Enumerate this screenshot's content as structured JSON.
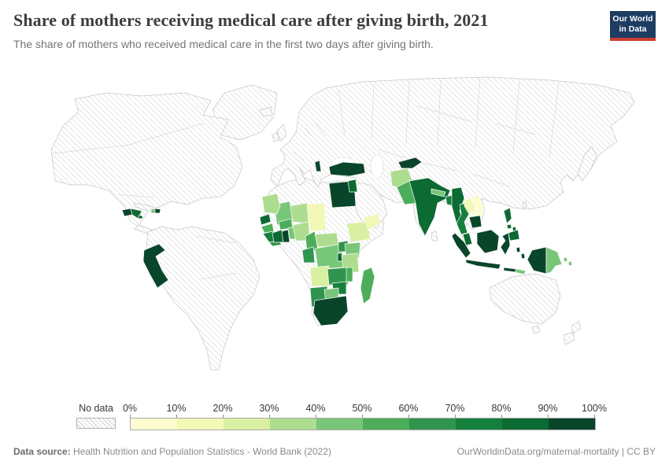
{
  "header": {
    "title": "Share of mothers receiving medical care after giving birth, 2021",
    "subtitle": "The share of mothers who received medical care in the first two days after giving birth.",
    "logo": {
      "line1": "Our World",
      "line2": "in Data",
      "bg_color": "#1d3d63",
      "accent_color": "#cc3e33"
    }
  },
  "legend": {
    "no_data_label": "No data",
    "tick_labels": [
      "0%",
      "10%",
      "20%",
      "30%",
      "40%",
      "50%",
      "60%",
      "70%",
      "80%",
      "90%",
      "100%"
    ],
    "bin_colors": [
      "#fdfbd0",
      "#f2f8b5",
      "#d9f0a3",
      "#addd8e",
      "#78c679",
      "#4cae5a",
      "#2f944e",
      "#15803d",
      "#0c6a33",
      "#09452a"
    ],
    "bin_ranges": [
      "0-10%",
      "10-20%",
      "20-30%",
      "30-40%",
      "40-50%",
      "50-60%",
      "60-70%",
      "70-80%",
      "80-90%",
      "90-100%"
    ]
  },
  "footer": {
    "source_label": "Data source:",
    "source_text": " Health Nutrition and Population Statistics - World Bank (2022)",
    "credit": "OurWorldinData.org/maternal-mortality | CC BY"
  },
  "chart_data": {
    "type": "choropleth",
    "title": "Share of mothers receiving medical care after giving birth",
    "year": 2021,
    "unit": "%",
    "legend_bin_edges": [
      0,
      10,
      20,
      30,
      40,
      50,
      60,
      70,
      80,
      90,
      100
    ],
    "no_data_style": "white with gray diagonal hatching",
    "countries": [
      {
        "name": "Guatemala",
        "bin": 9,
        "range": "90-100%"
      },
      {
        "name": "Honduras",
        "bin": 8,
        "range": "80-90%"
      },
      {
        "name": "Jamaica",
        "bin": 8,
        "range": "80-90%"
      },
      {
        "name": "Haiti",
        "bin": 4,
        "range": "40-50%"
      },
      {
        "name": "Dominican Republic",
        "bin": 9,
        "range": "90-100%"
      },
      {
        "name": "Peru",
        "bin": 9,
        "range": "90-100%"
      },
      {
        "name": "Senegal",
        "bin": 8,
        "range": "80-90%"
      },
      {
        "name": "Mauritania",
        "bin": 3,
        "range": "30-40%"
      },
      {
        "name": "Mali",
        "bin": 4,
        "range": "40-50%"
      },
      {
        "name": "Guinea",
        "bin": 5,
        "range": "50-60%"
      },
      {
        "name": "Sierra Leone",
        "bin": 7,
        "range": "70-80%"
      },
      {
        "name": "Liberia",
        "bin": 6,
        "range": "60-70%"
      },
      {
        "name": "Cote d'Ivoire",
        "bin": 8,
        "range": "80-90%"
      },
      {
        "name": "Ghana",
        "bin": 9,
        "range": "90-100%"
      },
      {
        "name": "Burkina Faso",
        "bin": 5,
        "range": "50-60%"
      },
      {
        "name": "Benin",
        "bin": 4,
        "range": "40-50%"
      },
      {
        "name": "Niger",
        "bin": 3,
        "range": "30-40%"
      },
      {
        "name": "Nigeria",
        "bin": 3,
        "range": "30-40%"
      },
      {
        "name": "Chad",
        "bin": 1,
        "range": "10-20%"
      },
      {
        "name": "Cameroon",
        "bin": 5,
        "range": "50-60%"
      },
      {
        "name": "Central African Republic",
        "bin": 3,
        "range": "30-40%"
      },
      {
        "name": "Ethiopia",
        "bin": 2,
        "range": "20-30%"
      },
      {
        "name": "Kenya",
        "bin": 4,
        "range": "40-50%"
      },
      {
        "name": "Uganda",
        "bin": 6,
        "range": "60-70%"
      },
      {
        "name": "Democratic Republic of Congo",
        "bin": 4,
        "range": "40-50%"
      },
      {
        "name": "Gabon",
        "bin": 6,
        "range": "60-70%"
      },
      {
        "name": "Rwanda",
        "bin": 8,
        "range": "80-90%"
      },
      {
        "name": "Tanzania",
        "bin": 3,
        "range": "30-40%"
      },
      {
        "name": "Angola",
        "bin": 2,
        "range": "20-30%"
      },
      {
        "name": "Zambia",
        "bin": 6,
        "range": "60-70%"
      },
      {
        "name": "Malawi",
        "bin": 5,
        "range": "50-60%"
      },
      {
        "name": "Zimbabwe",
        "bin": 7,
        "range": "70-80%"
      },
      {
        "name": "Namibia",
        "bin": 6,
        "range": "60-70%"
      },
      {
        "name": "Botswana",
        "bin": 4,
        "range": "40-50%"
      },
      {
        "name": "South Africa",
        "bin": 9,
        "range": "90-100%"
      },
      {
        "name": "Madagascar",
        "bin": 5,
        "range": "50-60%"
      },
      {
        "name": "Egypt",
        "bin": 9,
        "range": "90-100%"
      },
      {
        "name": "Turkey",
        "bin": 9,
        "range": "90-100%"
      },
      {
        "name": "Albania",
        "bin": 9,
        "range": "90-100%"
      },
      {
        "name": "Jordan",
        "bin": 8,
        "range": "80-90%"
      },
      {
        "name": "Yemen",
        "bin": 1,
        "range": "10-20%"
      },
      {
        "name": "Tajikistan",
        "bin": 9,
        "range": "90-100%"
      },
      {
        "name": "Afghanistan",
        "bin": 3,
        "range": "30-40%"
      },
      {
        "name": "Pakistan",
        "bin": 5,
        "range": "50-60%"
      },
      {
        "name": "India",
        "bin": 8,
        "range": "80-90%"
      },
      {
        "name": "Nepal",
        "bin": 4,
        "range": "40-50%"
      },
      {
        "name": "Bangladesh",
        "bin": 7,
        "range": "70-80%"
      },
      {
        "name": "Myanmar",
        "bin": 8,
        "range": "80-90%"
      },
      {
        "name": "Thailand",
        "bin": 7,
        "range": "70-80%"
      },
      {
        "name": "Laos",
        "bin": 1,
        "range": "10-20%"
      },
      {
        "name": "Vietnam",
        "bin": 0,
        "range": "0-10%"
      },
      {
        "name": "Cambodia",
        "bin": 9,
        "range": "90-100%"
      },
      {
        "name": "Malaysia",
        "bin": 8,
        "range": "80-90%"
      },
      {
        "name": "Philippines",
        "bin": 8,
        "range": "80-90%"
      },
      {
        "name": "Indonesia",
        "bin": 9,
        "range": "90-100%"
      },
      {
        "name": "Papua New Guinea",
        "bin": 4,
        "range": "40-50%"
      },
      {
        "name": "Solomon Islands",
        "bin": 4,
        "range": "40-50%"
      },
      {
        "name": "Timor",
        "bin": 4,
        "range": "40-50%"
      }
    ]
  }
}
